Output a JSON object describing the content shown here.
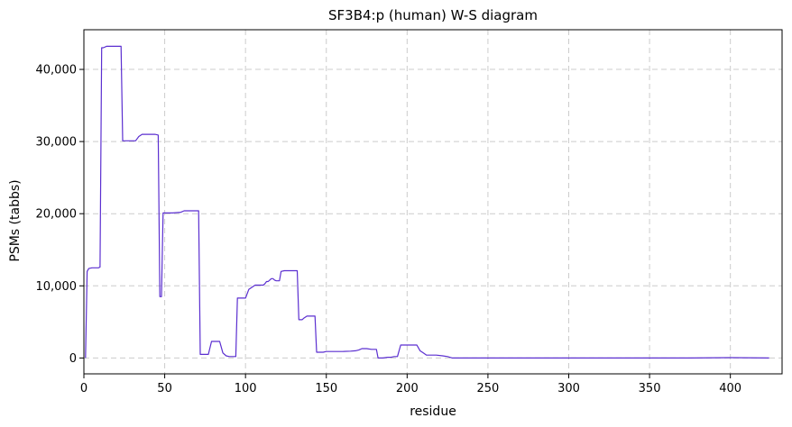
{
  "chart_data": {
    "type": "line",
    "title": "SF3B4:p (human) W-S diagram",
    "xlabel": "residue",
    "ylabel": "PSMs (tabbs)",
    "xlim": [
      0,
      432
    ],
    "ylim": [
      -2200,
      45500
    ],
    "grid": true,
    "line_color": "#5b2fd0",
    "grid_color": "#cccccc",
    "x_ticks": [
      0,
      50,
      100,
      150,
      200,
      250,
      300,
      350,
      400
    ],
    "x_tick_labels": [
      "0",
      "50",
      "100",
      "150",
      "200",
      "250",
      "300",
      "350",
      "400"
    ],
    "y_ticks": [
      0,
      10000,
      20000,
      30000,
      40000
    ],
    "y_tick_labels": [
      "0",
      "10,000",
      "20,000",
      "30,000",
      "40,000"
    ],
    "series": [
      {
        "x": [
          1,
          2,
          3,
          5,
          7,
          9,
          10,
          11,
          12,
          14,
          16,
          18,
          20,
          22,
          23,
          24,
          26,
          28,
          30,
          32,
          34,
          36,
          38,
          40,
          42,
          44,
          46,
          47,
          48,
          49,
          50,
          55,
          60,
          62,
          64,
          66,
          68,
          70,
          71,
          72,
          73,
          75,
          77,
          79,
          81,
          83,
          84,
          86,
          88,
          90,
          92,
          93,
          94,
          95,
          96,
          98,
          99,
          100,
          102,
          104,
          106,
          108,
          110,
          111,
          112,
          113,
          114,
          115,
          116,
          117,
          118,
          119,
          120,
          121,
          122,
          124,
          126,
          128,
          130,
          131,
          132,
          133,
          134,
          135,
          136,
          138,
          140,
          141,
          142,
          143,
          144,
          146,
          148,
          150,
          155,
          160,
          165,
          168,
          170,
          172,
          175,
          178,
          180,
          181,
          182,
          185,
          188,
          190,
          192,
          193,
          194,
          196,
          198,
          200,
          204,
          206,
          207,
          208,
          210,
          212,
          214,
          218,
          222,
          225,
          228,
          240,
          300,
          350,
          375,
          400,
          424
        ],
        "y": [
          0,
          12000,
          12400,
          12500,
          12500,
          12500,
          12600,
          43000,
          43000,
          43200,
          43200,
          43200,
          43200,
          43200,
          43200,
          30100,
          30100,
          30100,
          30100,
          30100,
          30700,
          31000,
          31000,
          31000,
          31000,
          31000,
          30900,
          8500,
          8500,
          20100,
          20100,
          20100,
          20200,
          20400,
          20400,
          20400,
          20400,
          20400,
          20400,
          500,
          500,
          500,
          500,
          2300,
          2300,
          2300,
          2300,
          700,
          300,
          200,
          200,
          200,
          200,
          8300,
          8300,
          8300,
          8300,
          8300,
          9500,
          9800,
          10100,
          10100,
          10100,
          10100,
          10300,
          10600,
          10600,
          10800,
          11000,
          11000,
          10800,
          10700,
          10700,
          10700,
          12000,
          12100,
          12100,
          12100,
          12100,
          12100,
          12100,
          5300,
          5300,
          5300,
          5500,
          5800,
          5800,
          5800,
          5800,
          5800,
          800,
          800,
          800,
          900,
          900,
          900,
          950,
          1000,
          1100,
          1300,
          1300,
          1200,
          1200,
          1200,
          0,
          0,
          100,
          100,
          200,
          200,
          200,
          1800,
          1800,
          1800,
          1800,
          1800,
          1400,
          1000,
          700,
          400,
          400,
          400,
          300,
          200,
          0,
          0,
          0,
          0,
          0,
          50,
          0
        ]
      }
    ]
  }
}
